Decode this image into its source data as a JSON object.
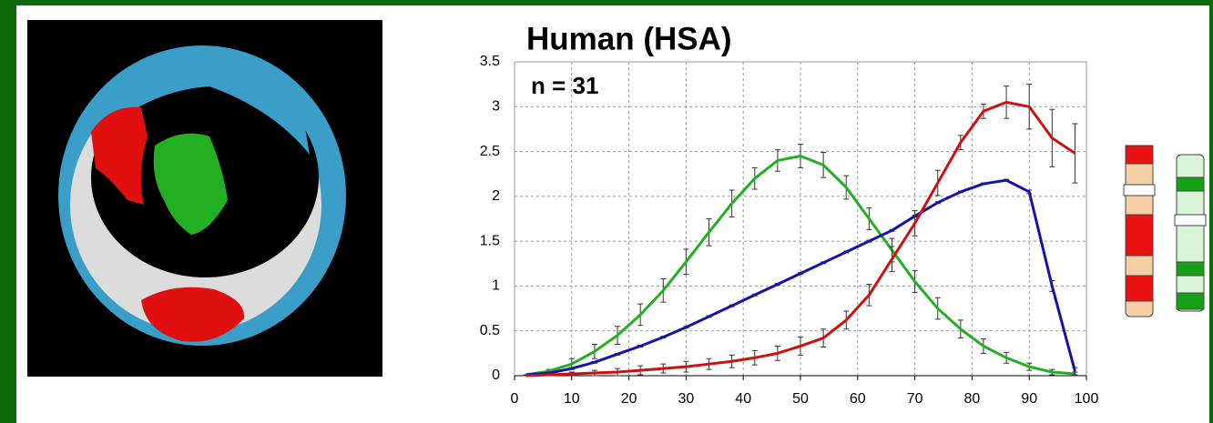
{
  "chart_data": {
    "type": "line",
    "title": "Human (HSA)",
    "annotation": "n = 31",
    "x": [
      2,
      6,
      10,
      14,
      18,
      22,
      26,
      30,
      34,
      38,
      42,
      46,
      50,
      54,
      58,
      62,
      66,
      70,
      74,
      78,
      82,
      86,
      90,
      94,
      98
    ],
    "series": [
      {
        "color": "#22b022",
        "values": [
          0.01,
          0.05,
          0.13,
          0.27,
          0.45,
          0.68,
          0.95,
          1.27,
          1.6,
          1.92,
          2.2,
          2.4,
          2.45,
          2.35,
          2.1,
          1.75,
          1.4,
          1.05,
          0.75,
          0.52,
          0.33,
          0.2,
          0.1,
          0.04,
          0.02
        ],
        "errors": [
          0,
          0.02,
          0.06,
          0.08,
          0.1,
          0.12,
          0.13,
          0.14,
          0.15,
          0.15,
          0.12,
          0.12,
          0.13,
          0.14,
          0.13,
          0.12,
          0.13,
          0.12,
          0.12,
          0.1,
          0.08,
          0.06,
          0.04,
          0.03,
          0.02
        ]
      },
      {
        "color": "#1414aa",
        "values": [
          0.01,
          0.03,
          0.08,
          0.15,
          0.24,
          0.33,
          0.43,
          0.54,
          0.66,
          0.78,
          0.9,
          1.02,
          1.14,
          1.26,
          1.38,
          1.5,
          1.62,
          1.78,
          1.93,
          2.05,
          2.14,
          2.18,
          2.05,
          1.0,
          0.05
        ],
        "errors": [
          0,
          0.01,
          0.01,
          0.01,
          0.01,
          0.01,
          0.01,
          0.01,
          0.01,
          0.01,
          0.01,
          0.01,
          0.01,
          0.01,
          0.01,
          0.01,
          0.01,
          0.01,
          0.01,
          0.01,
          0.01,
          0.01,
          0.02,
          0.06,
          0.04
        ]
      },
      {
        "color": "#d01010",
        "values": [
          0,
          0.01,
          0.02,
          0.03,
          0.04,
          0.06,
          0.08,
          0.1,
          0.13,
          0.16,
          0.2,
          0.25,
          0.33,
          0.42,
          0.62,
          0.9,
          1.3,
          1.7,
          2.15,
          2.6,
          2.95,
          3.05,
          3.0,
          2.65,
          2.48
        ],
        "errors": [
          0,
          0.01,
          0.02,
          0.03,
          0.04,
          0.05,
          0.05,
          0.06,
          0.06,
          0.07,
          0.08,
          0.08,
          0.1,
          0.1,
          0.1,
          0.12,
          0.14,
          0.14,
          0.14,
          0.08,
          0.08,
          0.18,
          0.25,
          0.32,
          0.33
        ]
      }
    ],
    "xlim": [
      0,
      100
    ],
    "xticks": [
      0,
      10,
      20,
      30,
      40,
      50,
      60,
      70,
      80,
      90,
      100
    ],
    "ylim": [
      0,
      3.5
    ],
    "yticks": [
      0,
      0.5,
      1,
      1.5,
      2,
      2.5,
      3,
      3.5
    ],
    "grid": true
  }
}
